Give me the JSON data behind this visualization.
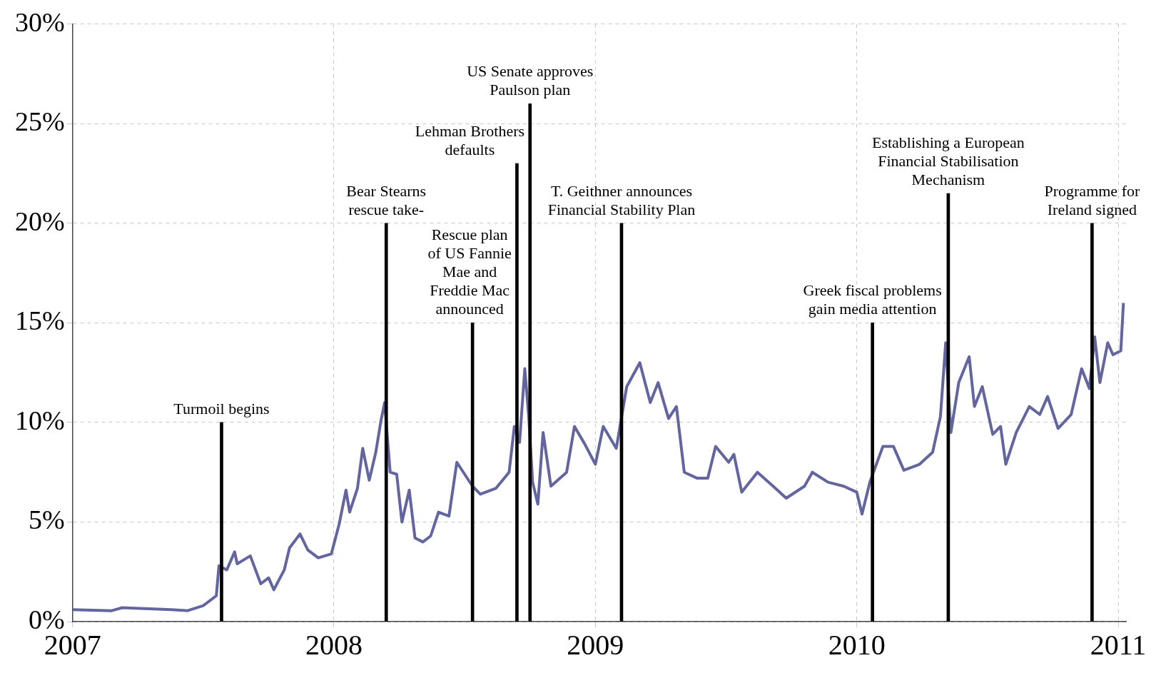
{
  "chart_data": {
    "type": "line",
    "xlim": [
      2007,
      2011.03
    ],
    "xticks": [
      2007,
      2008,
      2009,
      2010,
      2011
    ],
    "ylim": [
      0,
      30
    ],
    "yticks": [
      {
        "value": 0,
        "label": "0%"
      },
      {
        "value": 5,
        "label": "5%"
      },
      {
        "value": 10,
        "label": "10%"
      },
      {
        "value": 15,
        "label": "15%"
      },
      {
        "value": 20,
        "label": "20%"
      },
      {
        "value": 25,
        "label": "25%"
      },
      {
        "value": 30,
        "label": "30%"
      }
    ],
    "grid": true,
    "legend": false,
    "series": [
      {
        "color": "#63669e",
        "x": [
          2007.0,
          2007.15,
          2007.19,
          2007.38,
          2007.44,
          2007.5,
          2007.55,
          2007.56,
          2007.59,
          2007.62,
          2007.63,
          2007.68,
          2007.72,
          2007.75,
          2007.77,
          2007.81,
          2007.83,
          2007.87,
          2007.9,
          2007.94,
          2007.99,
          2008.02,
          2008.046,
          2008.06,
          2008.09,
          2008.11,
          2008.135,
          2008.16,
          2008.18,
          2008.194,
          2008.215,
          2008.24,
          2008.26,
          2008.288,
          2008.31,
          2008.34,
          2008.37,
          2008.4,
          2008.44,
          2008.47,
          2008.5,
          2008.53,
          2008.56,
          2008.62,
          2008.67,
          2008.69,
          2008.71,
          2008.73,
          2008.745,
          2008.76,
          2008.78,
          2008.8,
          2008.83,
          2008.89,
          2008.92,
          2008.96,
          2009.0,
          2009.03,
          2009.08,
          2009.12,
          2009.17,
          2009.21,
          2009.24,
          2009.28,
          2009.31,
          2009.34,
          2009.39,
          2009.43,
          2009.46,
          2009.51,
          2009.53,
          2009.56,
          2009.62,
          2009.68,
          2009.73,
          2009.8,
          2009.83,
          2009.89,
          2009.95,
          2010.0,
          2010.02,
          2010.05,
          2010.1,
          2010.14,
          2010.18,
          2010.24,
          2010.29,
          2010.32,
          2010.34,
          2010.36,
          2010.39,
          2010.43,
          2010.45,
          2010.48,
          2010.52,
          2010.55,
          2010.57,
          2010.61,
          2010.66,
          2010.7,
          2010.73,
          2010.77,
          2010.82,
          2010.86,
          2010.89,
          2010.91,
          2010.93,
          2010.96,
          2010.98,
          2011.01,
          2011.02
        ],
        "values": [
          0.6,
          0.55,
          0.7,
          0.6,
          0.55,
          0.8,
          1.3,
          2.8,
          2.6,
          3.5,
          2.9,
          3.3,
          1.9,
          2.2,
          1.6,
          2.6,
          3.7,
          4.4,
          3.6,
          3.2,
          3.4,
          4.9,
          6.6,
          5.5,
          6.7,
          8.7,
          7.1,
          8.5,
          10.1,
          11.0,
          7.5,
          7.4,
          5.0,
          6.6,
          4.2,
          4.0,
          4.3,
          5.5,
          5.3,
          8.0,
          7.4,
          6.8,
          6.4,
          6.7,
          7.5,
          9.8,
          9.0,
          12.7,
          10.3,
          7.0,
          5.9,
          9.5,
          6.8,
          7.5,
          9.8,
          8.9,
          7.9,
          9.8,
          8.7,
          11.8,
          13.0,
          11.0,
          12.0,
          10.2,
          10.8,
          7.5,
          7.2,
          7.2,
          8.8,
          8.0,
          8.4,
          6.5,
          7.5,
          6.8,
          6.2,
          6.8,
          7.5,
          7.0,
          6.8,
          6.5,
          5.4,
          7.0,
          8.8,
          8.8,
          7.6,
          7.9,
          8.5,
          10.3,
          14.0,
          9.5,
          12.0,
          13.3,
          10.8,
          11.8,
          9.4,
          9.8,
          7.9,
          9.5,
          10.8,
          10.4,
          11.3,
          9.7,
          10.4,
          12.7,
          11.7,
          14.3,
          12.0,
          14.0,
          13.4,
          13.6,
          16.0
        ]
      },
      {
        "type": "bar",
        "color": "#000000",
        "x": [
          2007.57,
          2008.2,
          2008.53,
          2008.7,
          2008.75,
          2009.1,
          2010.06,
          2010.35,
          2010.9
        ],
        "values": [
          10,
          20,
          15,
          23,
          26,
          20,
          15,
          21.5,
          20
        ]
      }
    ],
    "annotations": [
      {
        "text": "Turmoil begins",
        "x": 2007.57,
        "y": 10
      },
      {
        "text": "Bear Stearns\nrescue take-",
        "x": 2008.2,
        "y": 20
      },
      {
        "text": "Rescue plan\nof US Fannie\nMae and\nFreddie Mac\nannounced",
        "x": 2008.53,
        "y": 15
      },
      {
        "text": "Lehman Brothers\ndefaults",
        "x": 2008.7,
        "y": 23
      },
      {
        "text": "US Senate approves\nPaulson plan",
        "x": 2008.75,
        "y": 26
      },
      {
        "text": "T. Geithner announces\nFinancial Stability Plan",
        "x": 2009.1,
        "y": 20
      },
      {
        "text": "Greek fiscal problems\ngain media attention",
        "x": 2010.06,
        "y": 15
      },
      {
        "text": "Establishing a European\nFinancial Stabilisation\nMechanism",
        "x": 2010.35,
        "y": 21.5
      },
      {
        "text": "Programme for\nIreland signed",
        "x": 2010.9,
        "y": 20
      }
    ]
  }
}
